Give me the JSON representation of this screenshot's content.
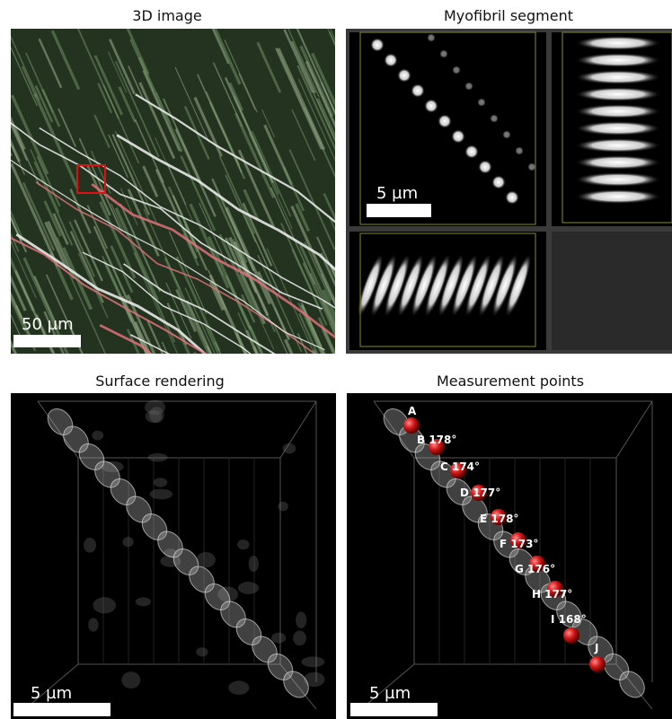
{
  "panels": [
    {
      "title": "3D image",
      "scale_bar": "50 µm"
    },
    {
      "title": "Myofibril segment",
      "scale_bar": "5 µm"
    },
    {
      "title": "Surface rendering",
      "scale_bar": "5 µm"
    },
    {
      "title": "Measurement points",
      "scale_bar": "5 µm",
      "points": [
        "A",
        "B 178°",
        "C 174°",
        "D 177°",
        "E 178°",
        "F 173°",
        "G 176°",
        "H 177°",
        "I 168°",
        "J"
      ]
    }
  ]
}
